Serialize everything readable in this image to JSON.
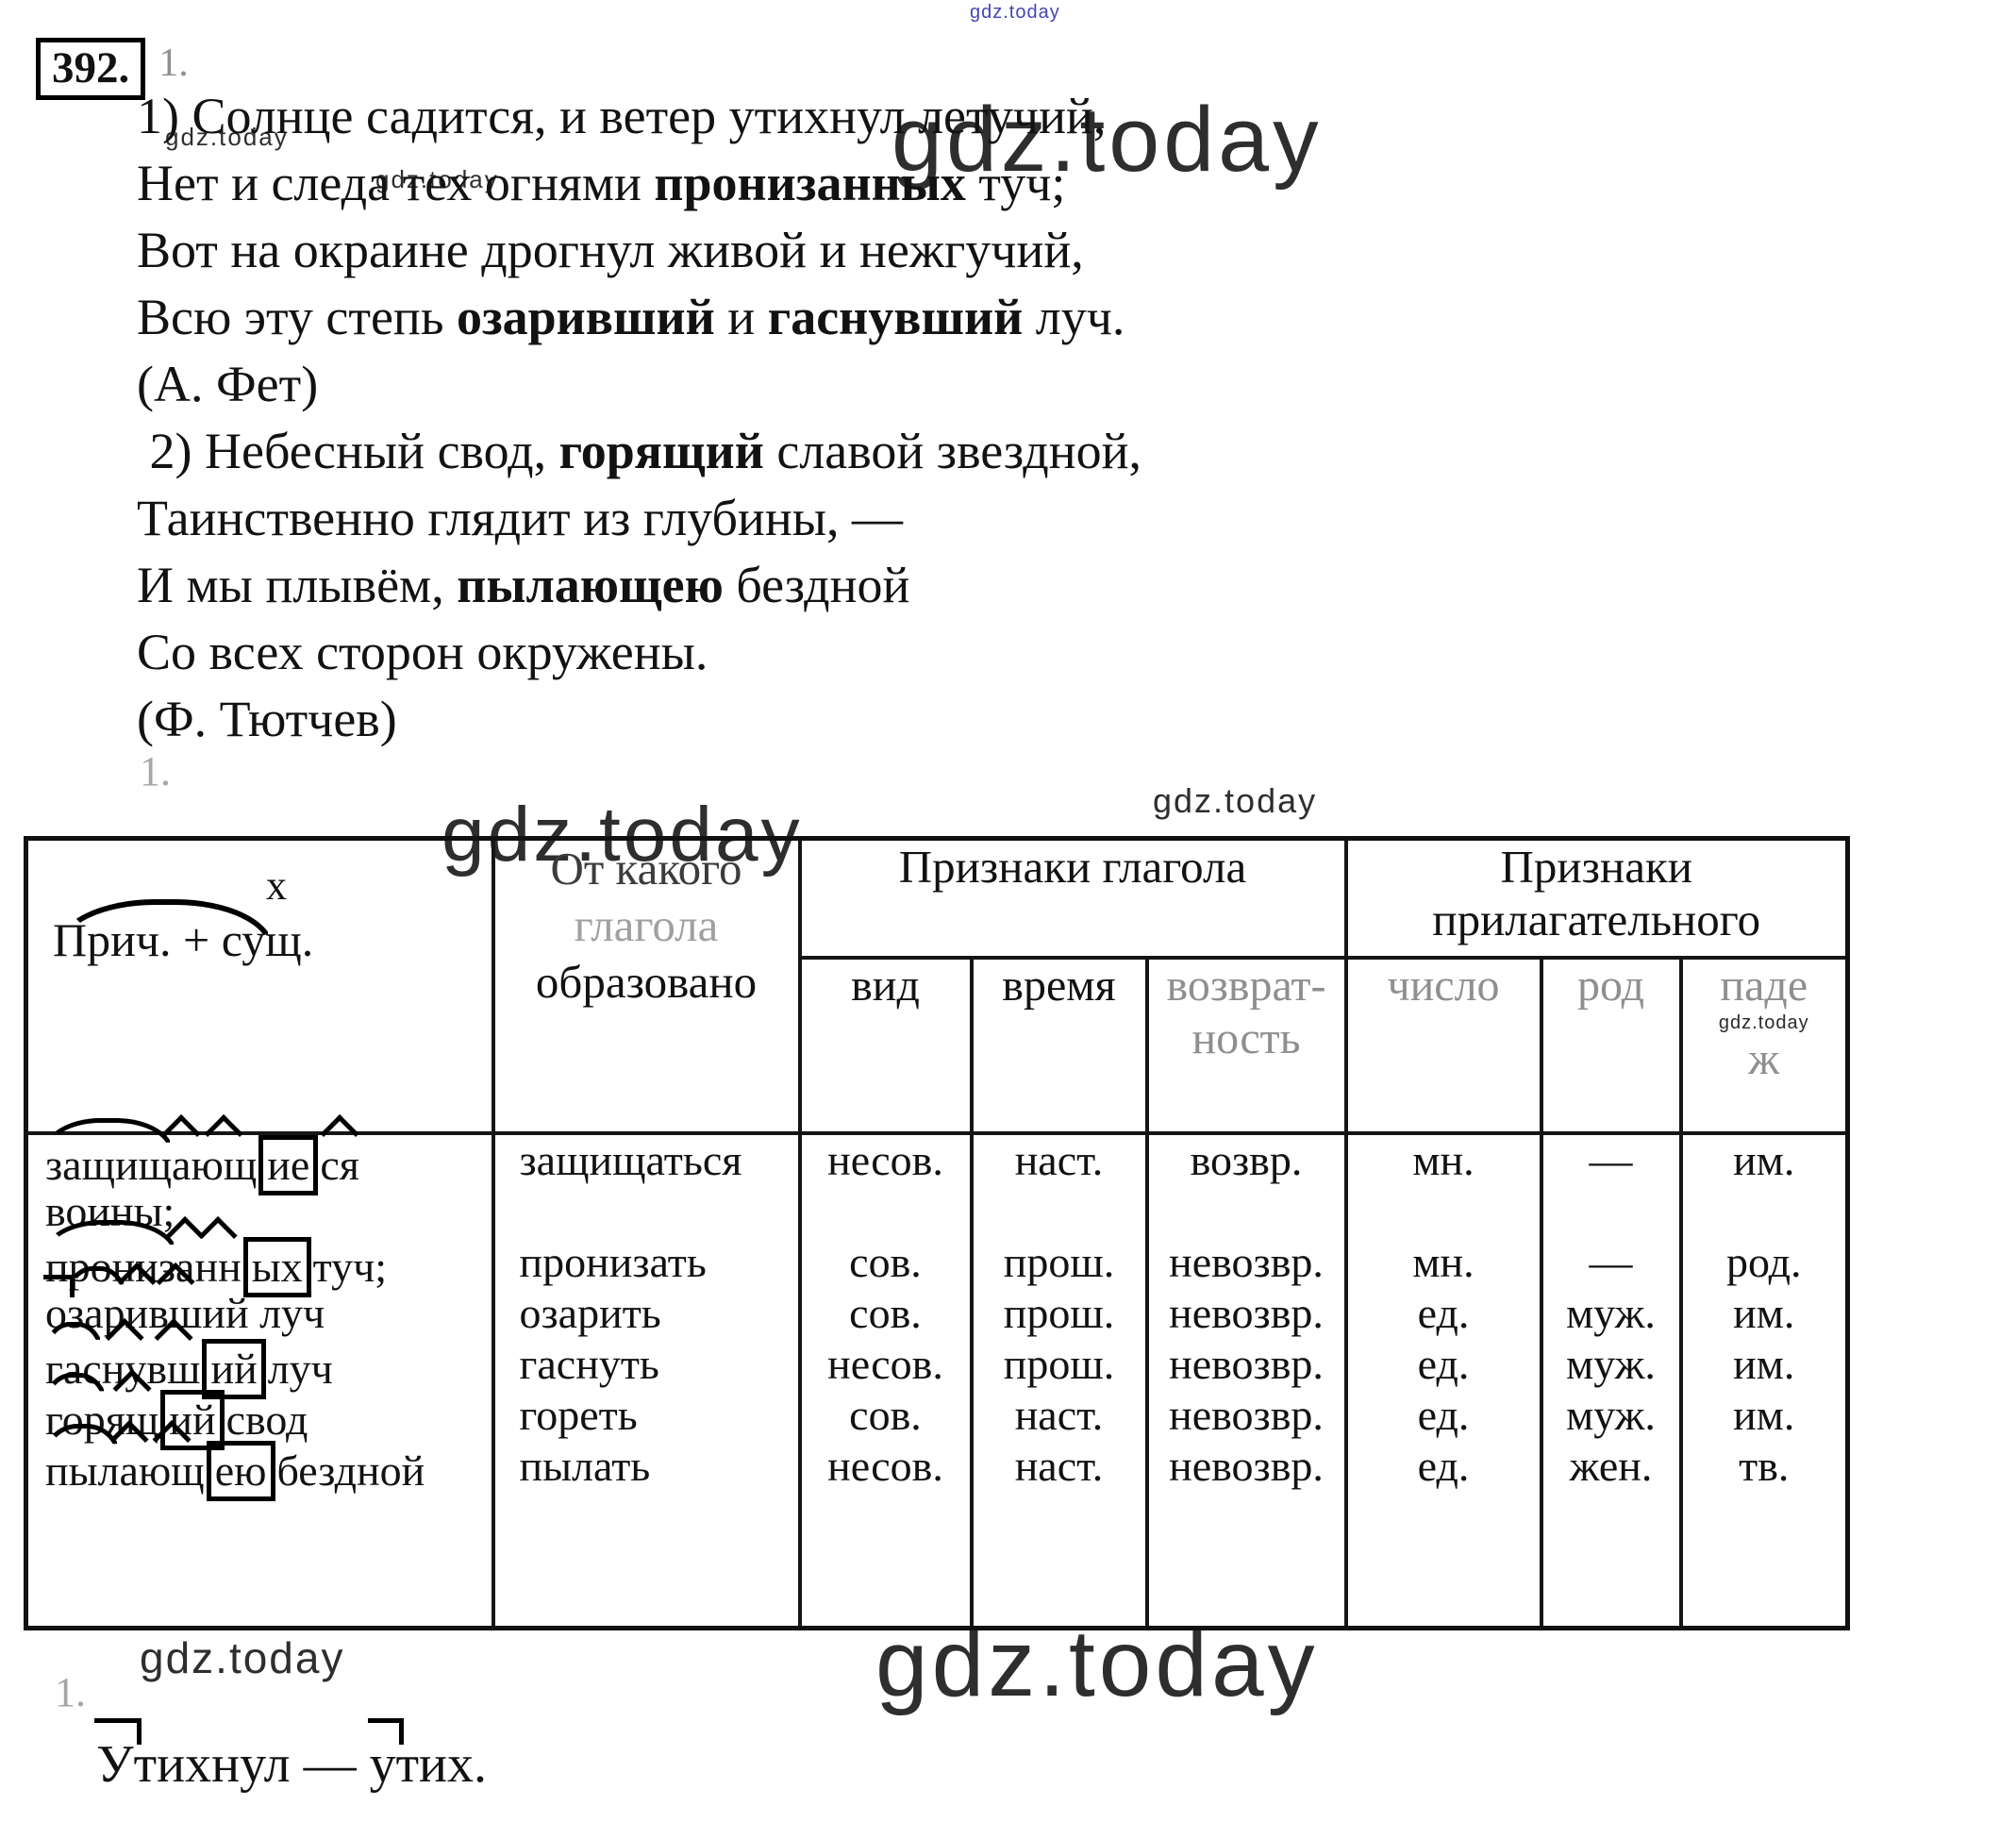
{
  "watermark": "gdz.today",
  "exercise": {
    "number": "392.",
    "marker": "1."
  },
  "section_marker_mid": "1.",
  "poem": {
    "lines": [
      [
        {
          "t": "1) Солнце садится, и ветер утихнул летучий,"
        }
      ],
      [
        {
          "t": "Нет и следа тех огнями "
        },
        {
          "t": "пронизанных",
          "b": true
        },
        {
          "t": " туч;"
        }
      ],
      [
        {
          "t": "Вот на окраине дрогнул живой и нежгучий,"
        }
      ],
      [
        {
          "t": "Всю эту степь "
        },
        {
          "t": "озаривший",
          "b": true
        },
        {
          "t": " и "
        },
        {
          "t": "гаснувший",
          "b": true
        },
        {
          "t": " луч."
        }
      ],
      [
        {
          "t": "(А. Фет)"
        }
      ],
      [
        {
          "t": " 2) Небесный свод, "
        },
        {
          "t": "горящий",
          "b": true
        },
        {
          "t": " славой звездной,"
        }
      ],
      [
        {
          "t": "Таинственно глядит из глубины, —"
        }
      ],
      [
        {
          "t": "И мы плывём, "
        },
        {
          "t": "пылающею",
          "b": true
        },
        {
          "t": " бездной"
        }
      ],
      [
        {
          "t": "Со всех сторон окружены."
        }
      ],
      [
        {
          "t": "(Ф. Тютчев)"
        }
      ]
    ]
  },
  "table": {
    "col1_header": {
      "x": "х",
      "label": "Прич. + сущ."
    },
    "col2_header_lines": [
      "От какого",
      "глагола",
      "образовано"
    ],
    "group_verb": "Признаки глагола",
    "group_adj_lines": [
      "Признаки",
      "прилагательного"
    ],
    "sub_headers": [
      "вид",
      "время",
      "возврат-|ность",
      "число",
      "род",
      "паде|ж"
    ],
    "entries": [
      {
        "phrase_lines": [
          [
            {
              "t": "защищ",
              "m": "root"
            },
            {
              "t": "а",
              "m": "suf"
            },
            {
              "t": "ющ",
              "m": "suf"
            },
            {
              "t": "ие",
              "m": "end"
            },
            {
              "t": "ся",
              "m": "suf"
            }
          ],
          [
            {
              "t": "воины;"
            }
          ]
        ],
        "verb": "защищаться",
        "features": [
          "несов.",
          "наст.",
          "возвр.",
          "мн.",
          "—",
          "им."
        ]
      },
      {
        "phrase_lines": [
          [
            {
              "t": "прониз",
              "m": "root"
            },
            {
              "t": "а",
              "m": "suf"
            },
            {
              "t": "нн",
              "m": "suf"
            },
            {
              "t": "ых",
              "m": "end"
            },
            {
              "t": " туч;"
            }
          ]
        ],
        "verb": "пронизать",
        "features": [
          "сов.",
          "прош.",
          "невозвр.",
          "мн.",
          "—",
          "род."
        ]
      },
      {
        "phrase_lines": [
          [
            {
              "t": "о",
              "m": "pre"
            },
            {
              "t": "зар",
              "m": "root"
            },
            {
              "t": "и",
              "m": "suf"
            },
            {
              "t": "вш",
              "m": "suf"
            },
            {
              "t": "ий луч"
            }
          ]
        ],
        "verb": "озарить",
        "features": [
          "сов.",
          "прош.",
          "невозвр.",
          "ед.",
          "муж.",
          "им."
        ]
      },
      {
        "phrase_lines": [
          [
            {
              "t": "гас",
              "m": "root"
            },
            {
              "t": "ну",
              "m": "suf"
            },
            {
              "t": "вш",
              "m": "suf"
            },
            {
              "t": "ий",
              "m": "end"
            },
            {
              "t": " луч"
            }
          ]
        ],
        "verb": "гаснуть",
        "features": [
          "несов.",
          "прош.",
          "невозвр.",
          "ед.",
          "муж.",
          "им."
        ]
      },
      {
        "phrase_lines": [
          [
            {
              "t": "гор",
              "m": "root"
            },
            {
              "t": "ящ",
              "m": "suf"
            },
            {
              "t": "ий",
              "m": "end"
            },
            {
              "t": " свод"
            }
          ]
        ],
        "verb": "гореть",
        "features": [
          "сов.",
          "наст.",
          "невозвр.",
          "ед.",
          "муж.",
          "им."
        ]
      },
      {
        "phrase_lines": [
          [
            {
              "t": "пыл",
              "m": "root"
            },
            {
              "t": "а",
              "m": "suf"
            },
            {
              "t": "ющ",
              "m": "suf"
            },
            {
              "t": "ею",
              "m": "end"
            },
            {
              "t": " бездной"
            }
          ]
        ],
        "verb": "пылать",
        "features": [
          "несов.",
          "наст.",
          "невозвр.",
          "ед.",
          "жен.",
          "тв."
        ]
      }
    ]
  },
  "bottom": {
    "marker": "1.",
    "word_pair": [
      [
        {
          "t": "У",
          "m": "pre"
        },
        {
          "t": "тихнул"
        }
      ],
      [
        {
          "t": "у",
          "m": "pre"
        },
        {
          "t": "тих."
        }
      ]
    ],
    "separator": " — "
  }
}
